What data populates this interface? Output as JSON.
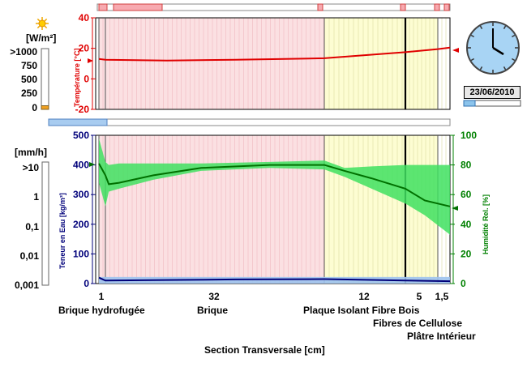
{
  "top_panel": {
    "radiation_unit": "[W/m²]",
    "radiation_scale": [
      ">1000",
      "750",
      "500",
      "250",
      "0"
    ],
    "temp_axis_label": "Température [°C]",
    "temp_ticks": [
      "40",
      "20",
      "0",
      "-20"
    ],
    "temp_range": [
      -20,
      40
    ],
    "radiation_level": 0.06
  },
  "bottom_panel": {
    "rain_unit": "[mm/h]",
    "rain_scale": [
      ">10",
      "1",
      "0,1",
      "0,01",
      "0,001"
    ],
    "water_axis_label": "Teneur en Eau [kg/m³]",
    "water_ticks": [
      "500",
      "400",
      "300",
      "200",
      "100",
      "0"
    ],
    "humidity_axis_label": "Humidité Rel. [%]",
    "humidity_ticks": [
      "100",
      "80",
      "60",
      "40",
      "20",
      "0"
    ]
  },
  "clock": {
    "date": "23/06/2010",
    "progress": 0.2
  },
  "layers": [
    {
      "thickness": "1",
      "name": "Brique hydrofugée"
    },
    {
      "thickness": "32",
      "name": "Brique"
    },
    {
      "thickness": "12",
      "name": "Plaque Isolant Fibre Bois"
    },
    {
      "thickness": "5",
      "name": "Fibres de Cellulose"
    },
    {
      "thickness": "1,5",
      "name": "Plâtre Intérieur"
    }
  ],
  "x_axis_label": "Section Transversale [cm]",
  "colors": {
    "temperature": "#e00000",
    "humidity": "#007000",
    "humidity_band": "#40e060",
    "water": "#00007a",
    "water_band": "#9dc3ee",
    "brick": "#fbe0e2",
    "insulation": "#fdfdd2",
    "axis_left": "#e00000",
    "axis_right": "#008000",
    "axis_water": "#00007a"
  },
  "chart_data": {
    "type": "line",
    "x_unit": "cm",
    "x_label": "Section Transversale [cm]",
    "series": [
      {
        "name": "Température [°C]",
        "x": [
          0,
          1,
          10,
          20,
          33,
          39,
          45,
          50,
          51.5
        ],
        "values": [
          13,
          12.5,
          12,
          12.5,
          13.5,
          15.5,
          17.5,
          19.5,
          20.5
        ]
      },
      {
        "name": "Humidité Rel. [%]",
        "x": [
          0,
          1,
          1.5,
          3,
          8,
          15,
          25,
          33,
          36,
          40,
          45,
          48,
          51.5
        ],
        "values": [
          81,
          73,
          67,
          68,
          73,
          78,
          80,
          80,
          76,
          71,
          64,
          56,
          52
        ]
      },
      {
        "name": "Teneur en Eau [kg/m³]",
        "x": [
          0,
          1,
          10,
          20,
          33,
          45,
          51.5
        ],
        "values": [
          20,
          10,
          12,
          14,
          15,
          10,
          8
        ]
      }
    ]
  }
}
